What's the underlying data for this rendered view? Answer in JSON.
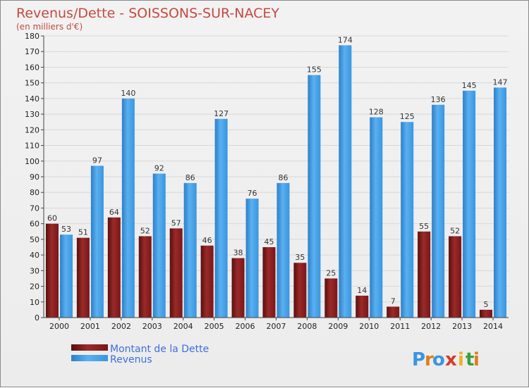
{
  "chart_data": {
    "type": "bar",
    "title": "Revenus/Dette - SOISSONS-SUR-NACEY",
    "subtitle": "(en milliers d'€)",
    "categories": [
      "2000",
      "2001",
      "2002",
      "2003",
      "2004",
      "2005",
      "2006",
      "2007",
      "2008",
      "2009",
      "2010",
      "2011",
      "2012",
      "2013",
      "2014"
    ],
    "series": [
      {
        "name": "Montant de la Dette",
        "color": "#8b1a1a",
        "values": [
          60,
          51,
          64,
          52,
          57,
          46,
          38,
          45,
          35,
          25,
          14,
          7,
          55,
          52,
          5
        ]
      },
      {
        "name": "Revenus",
        "color": "#3a95e0",
        "values": [
          53,
          97,
          140,
          92,
          86,
          127,
          76,
          86,
          155,
          174,
          128,
          125,
          136,
          145,
          147
        ]
      }
    ],
    "ylim": [
      0,
      180
    ],
    "yticks": [
      0,
      10,
      20,
      30,
      40,
      50,
      60,
      70,
      80,
      90,
      100,
      110,
      120,
      130,
      140,
      150,
      160,
      170,
      180
    ],
    "xlabel": "",
    "ylabel": "",
    "grid": true,
    "legend": "bottom-left"
  },
  "brand": {
    "text": "Proxiti",
    "letters": [
      "P",
      "r",
      "o",
      "x",
      "i",
      "t",
      "i"
    ]
  }
}
